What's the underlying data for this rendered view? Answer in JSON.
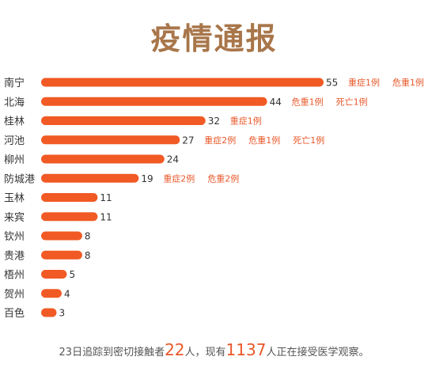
{
  "title": "疫情通报",
  "colors": {
    "bar": "#f15a24",
    "title": "#a8764a",
    "note": "#e8582a"
  },
  "chart_data": {
    "type": "bar",
    "orientation": "horizontal",
    "categories": [
      "南宁",
      "北海",
      "桂林",
      "河池",
      "柳州",
      "防城港",
      "玉林",
      "来宾",
      "钦州",
      "贵港",
      "梧州",
      "贺州",
      "百色"
    ],
    "values": [
      55,
      44,
      32,
      27,
      24,
      19,
      11,
      11,
      8,
      8,
      5,
      4,
      3
    ],
    "annotations": [
      [
        "重症1例",
        "危重1例"
      ],
      [
        "危重1例",
        "死亡1例"
      ],
      [
        "重症1例"
      ],
      [
        "重症2例",
        "危重1例",
        "死亡1例"
      ],
      [],
      [
        "重症2例",
        "危重2例"
      ],
      [],
      [],
      [],
      [],
      [],
      [],
      []
    ],
    "xlim": [
      0,
      55
    ]
  },
  "footer": {
    "prefix": "23日追踪到密切接触者",
    "contacts": "22",
    "mid": "人，现有",
    "observed": "1137",
    "suffix": "人正在接受医学观察。"
  }
}
